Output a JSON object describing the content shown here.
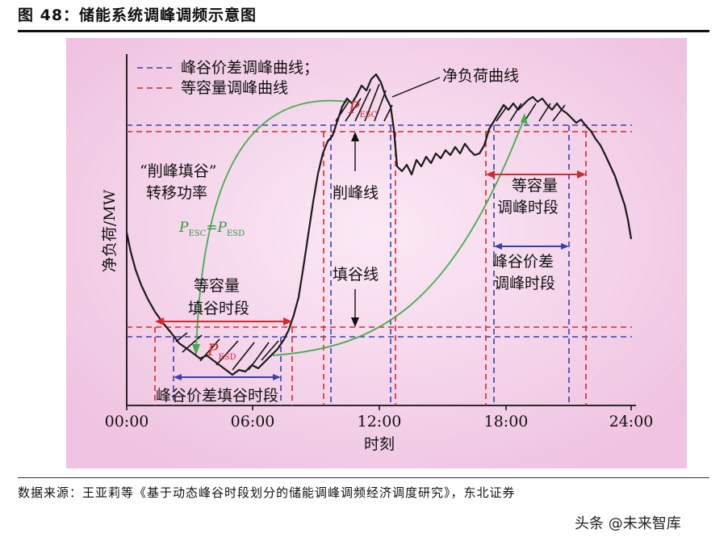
{
  "figure": {
    "title": "图 48：储能系统调峰调频示意图",
    "source": "数据来源：王亚莉等《基于动态峰谷时段划分的储能调峰调频经济调度研究》，东北证券",
    "watermark": "头条 @未来智库"
  },
  "diagram": {
    "ylabel": "净负荷/MW",
    "xlabel": "时刻",
    "xticks": [
      "00:00",
      "06:00",
      "12:00",
      "18:00",
      "24:00"
    ],
    "legend": {
      "blue": "峰谷价差调峰曲线；",
      "red": "等容量调峰曲线"
    },
    "labels": {
      "net_load": "净负荷曲线",
      "transfer_line1": "“削峰填谷”",
      "transfer_line2": "转移功率",
      "equation_left": "P",
      "equation_left_sub": "ESC",
      "equation_mid": "=P",
      "equation_right_sub": "ESD",
      "p_esc": "P",
      "p_esc_sub": "ESC",
      "p_esd": "P",
      "p_esd_sub": "ESD",
      "peak_line": "削峰线",
      "valley_line": "填谷线",
      "eq_valley_1": "等容量",
      "eq_valley_2": "填谷时段",
      "eq_peak_1": "等容量",
      "eq_peak_2": "调峰时段",
      "pv_peak_1": "峰谷价差",
      "pv_peak_2": "调峰时段",
      "pv_valley": "峰谷价差填谷时段"
    },
    "colors": {
      "panel": "#f1c8e4",
      "blue": "#3a3fb0",
      "red": "#d42a2a",
      "green": "#3fae4a",
      "curve": "#1a1a1a"
    }
  }
}
